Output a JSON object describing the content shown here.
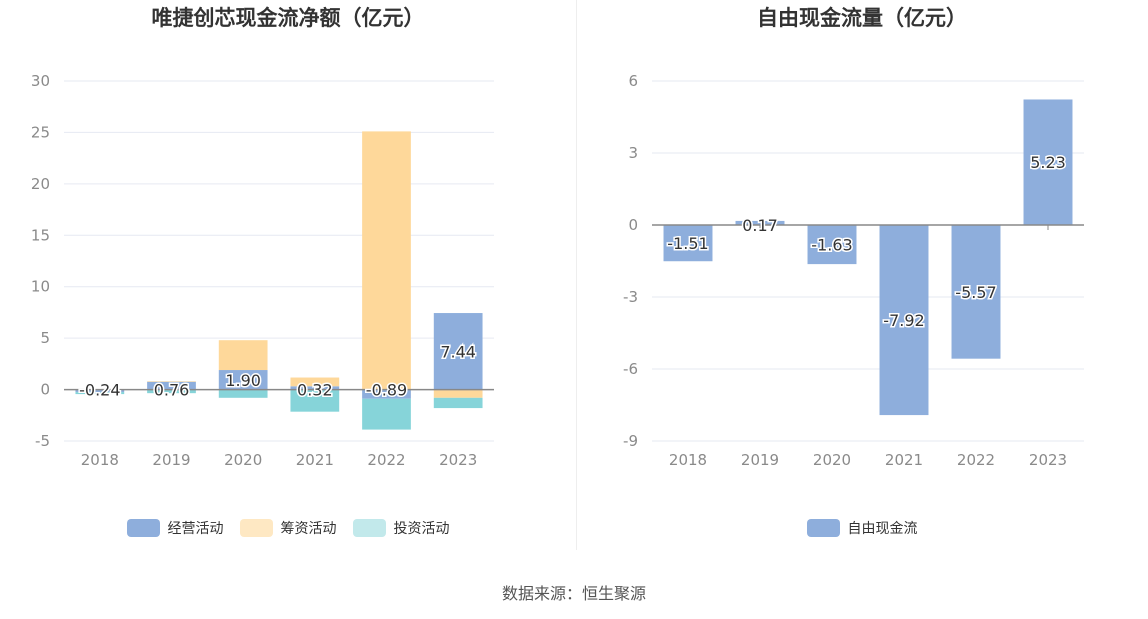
{
  "chart_data": [
    {
      "type": "bar",
      "stacked": true,
      "title": "唯捷创芯现金流净额（亿元）",
      "categories": [
        "2018",
        "2019",
        "2020",
        "2021",
        "2022",
        "2023"
      ],
      "ylim": [
        -5,
        30
      ],
      "yticks": [
        -5,
        0,
        5,
        10,
        15,
        20,
        25,
        30
      ],
      "grid": true,
      "legend_position": "bottom",
      "series": [
        {
          "name": "经营活动",
          "color": "#8eaedc",
          "values": [
            -0.24,
            0.76,
            1.9,
            0.32,
            -0.89,
            7.44
          ]
        },
        {
          "name": "筹资活动",
          "color": "#fed89a",
          "values": [
            0.05,
            0.05,
            2.9,
            0.85,
            25.1,
            -0.8
          ]
        },
        {
          "name": "投资活动",
          "color": "#86d4d9",
          "values": [
            -0.2,
            -0.35,
            -0.8,
            -2.15,
            -3.0,
            -1.0
          ]
        }
      ],
      "data_labels": [
        "-0.24",
        "0.76",
        "1.90",
        "0.32",
        "-0.89",
        "7.44"
      ]
    },
    {
      "type": "bar",
      "title": "自由现金流量（亿元）",
      "categories": [
        "2018",
        "2019",
        "2020",
        "2021",
        "2022",
        "2023"
      ],
      "ylim": [
        -9,
        6
      ],
      "yticks": [
        -9,
        -6,
        -3,
        0,
        3,
        6
      ],
      "grid": true,
      "legend_position": "bottom",
      "series": [
        {
          "name": "自由现金流",
          "color": "#8eaedc",
          "values": [
            -1.51,
            0.17,
            -1.63,
            -7.92,
            -5.57,
            5.23
          ]
        }
      ],
      "data_labels": [
        "-1.51",
        "0.17",
        "-1.63",
        "-7.92",
        "-5.57",
        "5.23"
      ]
    }
  ],
  "footer": {
    "source": "数据来源：恒生聚源"
  }
}
